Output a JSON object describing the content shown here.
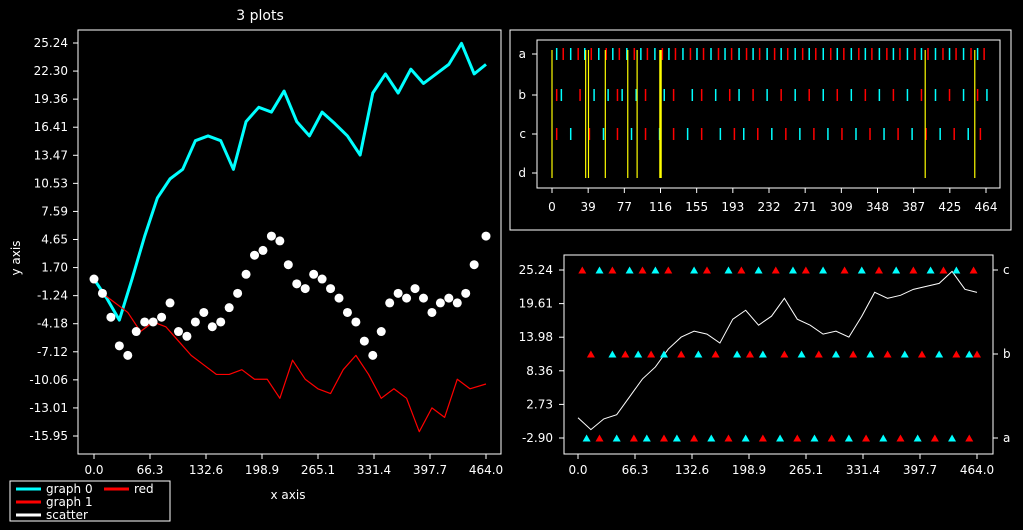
{
  "chart_data": [
    {
      "type": "line",
      "title": "3 plots",
      "xlabel": "x axis",
      "ylabel": "y axis",
      "xlim": [
        0,
        464
      ],
      "ylim": [
        -15.95,
        25.24
      ],
      "xticks": [
        "0.0",
        "66.3",
        "132.6",
        "198.9",
        "265.1",
        "331.4",
        "397.7",
        "464.0"
      ],
      "yticks": [
        "25.24",
        "22.30",
        "19.36",
        "16.41",
        "13.47",
        "10.53",
        "7.59",
        "4.65",
        "1.70",
        "-1.24",
        "-4.18",
        "-7.12",
        "-10.06",
        "-13.01",
        "-15.95"
      ],
      "legend": [
        {
          "name": "graph 0",
          "color": "#00ffff"
        },
        {
          "name": "graph 1",
          "color": "#ff0000"
        },
        {
          "name": "scatter",
          "color": "#ffffff"
        },
        {
          "name": "red",
          "color": "#ff0000"
        }
      ],
      "series": [
        {
          "name": "graph 0",
          "color": "#00ffff",
          "kind": "line",
          "x": [
            0,
            15,
            30,
            45,
            60,
            75,
            90,
            105,
            120,
            135,
            150,
            165,
            180,
            195,
            210,
            225,
            240,
            255,
            270,
            285,
            300,
            315,
            330,
            345,
            360,
            375,
            390,
            405,
            420,
            435,
            450,
            464
          ],
          "values": [
            0.5,
            -1.5,
            -3.8,
            0.5,
            5,
            9,
            11,
            12,
            15,
            15.5,
            15,
            12,
            17,
            18.5,
            18,
            20.2,
            17,
            15.5,
            18,
            16.8,
            15.5,
            13.5,
            20,
            22,
            20,
            22.5,
            21,
            22,
            23,
            25.2,
            22,
            23
          ]
        },
        {
          "name": "graph 1",
          "color": "#ff0000",
          "kind": "line",
          "x": [
            10,
            25,
            40,
            55,
            70,
            85,
            100,
            115,
            130,
            145,
            160,
            175,
            190,
            205,
            220,
            235,
            250,
            265,
            280,
            295,
            310,
            325,
            340,
            355,
            370,
            385,
            400,
            415,
            430,
            445,
            464
          ],
          "values": [
            -1,
            -2,
            -3,
            -5,
            -4,
            -4.5,
            -6,
            -7.5,
            -8.5,
            -9.5,
            -9.5,
            -9,
            -10,
            -10,
            -12,
            -8,
            -10,
            -11,
            -11.5,
            -9,
            -7.5,
            -9.5,
            -12,
            -11,
            -12,
            -15.5,
            -13,
            -14,
            -10,
            -11,
            -10.5
          ]
        },
        {
          "name": "scatter",
          "color": "#ffffff",
          "kind": "scatter",
          "x": [
            0,
            10,
            20,
            30,
            40,
            50,
            60,
            70,
            80,
            90,
            100,
            110,
            120,
            130,
            140,
            150,
            160,
            170,
            180,
            190,
            200,
            210,
            220,
            230,
            240,
            250,
            260,
            270,
            280,
            290,
            300,
            310,
            320,
            330,
            340,
            350,
            360,
            370,
            380,
            390,
            400,
            410,
            420,
            430,
            440,
            450,
            464
          ],
          "values": [
            0.5,
            -1,
            -3.5,
            -6.5,
            -7.5,
            -5,
            -4,
            -4,
            -3.5,
            -2,
            -5,
            -5.5,
            -4,
            -3,
            -4.5,
            -4,
            -2.5,
            -1,
            1,
            3,
            3.5,
            5,
            4.5,
            2,
            0,
            -0.5,
            1,
            0.5,
            -0.5,
            -1.5,
            -3,
            -4,
            -6,
            -7.5,
            -5,
            -2,
            -1,
            -1.5,
            -0.5,
            -1.5,
            -3,
            -2,
            -1.5,
            -2,
            -1,
            2,
            5
          ]
        }
      ]
    },
    {
      "type": "scatter",
      "xlim": [
        0,
        464
      ],
      "xticks": [
        "0",
        "39",
        "77",
        "116",
        "155",
        "193",
        "232",
        "271",
        "309",
        "348",
        "387",
        "425",
        "464"
      ],
      "categories": [
        "a",
        "b",
        "c",
        "d"
      ],
      "series": [
        {
          "name": "a",
          "color": "#00ffff",
          "marker": "tick",
          "x": [
            5,
            20,
            35,
            50,
            65,
            80,
            95,
            110,
            125,
            140,
            155,
            170,
            185,
            200,
            215,
            230,
            245,
            260,
            275,
            290,
            305,
            320,
            335,
            350,
            365,
            380,
            395,
            410,
            425,
            440,
            455
          ]
        },
        {
          "name": "a",
          "color": "#ff0000",
          "marker": "tick",
          "x": [
            12,
            28,
            42,
            58,
            72,
            88,
            102,
            118,
            132,
            148,
            162,
            178,
            192,
            208,
            222,
            238,
            252,
            268,
            282,
            298,
            312,
            328,
            342,
            358,
            372,
            388,
            402,
            418,
            432,
            448,
            462
          ]
        },
        {
          "name": "b",
          "color": "#00ffff",
          "marker": "tick",
          "x": [
            10,
            45,
            60,
            75,
            90,
            120,
            150,
            175,
            200,
            230,
            260,
            290,
            320,
            350,
            380,
            410,
            440,
            465
          ]
        },
        {
          "name": "b",
          "color": "#ff0000",
          "marker": "tick",
          "x": [
            5,
            30,
            70,
            100,
            130,
            160,
            190,
            215,
            245,
            275,
            305,
            335,
            365,
            395,
            425,
            455
          ]
        },
        {
          "name": "c",
          "color": "#00ffff",
          "marker": "tick",
          "x": [
            20,
            55,
            85,
            115,
            145,
            180,
            205,
            235,
            265,
            295,
            325,
            355,
            385,
            415,
            445
          ]
        },
        {
          "name": "c",
          "color": "#ff0000",
          "marker": "tick",
          "x": [
            5,
            40,
            70,
            100,
            130,
            160,
            195,
            220,
            250,
            280,
            310,
            340,
            370,
            400,
            430,
            458
          ]
        },
        {
          "name": "d",
          "color": "#ffff00",
          "marker": "vline",
          "x": [
            0,
            36,
            39,
            57,
            81,
            91,
            116,
            399,
            452
          ]
        }
      ]
    },
    {
      "type": "line",
      "xlim": [
        0,
        464
      ],
      "ylim": [
        -2.9,
        25.24
      ],
      "xticks": [
        "0.0",
        "66.3",
        "132.6",
        "198.9",
        "265.1",
        "331.4",
        "397.7",
        "464.0"
      ],
      "yticks": [
        "25.24",
        "19.61",
        "13.98",
        "8.36",
        "2.73",
        "-2.90"
      ],
      "right_ticks": [
        "c",
        "b",
        "a"
      ],
      "series": [
        {
          "name": "",
          "color": "#ffffff",
          "kind": "line",
          "x": [
            0,
            15,
            30,
            45,
            60,
            75,
            90,
            105,
            120,
            135,
            150,
            165,
            180,
            195,
            210,
            225,
            240,
            255,
            270,
            285,
            300,
            315,
            330,
            345,
            360,
            375,
            390,
            405,
            420,
            435,
            450,
            464
          ],
          "values": [
            0.5,
            -1.5,
            0.3,
            1,
            4,
            7,
            9,
            12,
            14,
            15,
            14.5,
            13,
            17,
            18.5,
            16,
            17.5,
            20.5,
            17,
            16,
            14.5,
            15,
            14,
            17.5,
            21.5,
            20.5,
            21,
            22,
            22.5,
            23,
            25,
            22,
            21.5
          ]
        },
        {
          "name": "",
          "color": "#00ffff",
          "marker": "triangle",
          "level": "c",
          "x": [
            25,
            60,
            90,
            135,
            175,
            210,
            250,
            285,
            330,
            370,
            410,
            440
          ]
        },
        {
          "name": "",
          "color": "#ff0000",
          "marker": "triangle",
          "level": "c",
          "x": [
            5,
            40,
            75,
            105,
            150,
            190,
            230,
            265,
            310,
            350,
            390,
            425,
            460
          ]
        },
        {
          "name": "",
          "color": "#00ffff",
          "marker": "triangle",
          "level": "b",
          "x": [
            40,
            70,
            100,
            140,
            185,
            215,
            260,
            300,
            340,
            380,
            420,
            455
          ]
        },
        {
          "name": "",
          "color": "#ff0000",
          "marker": "triangle",
          "level": "b",
          "x": [
            15,
            55,
            85,
            120,
            160,
            200,
            240,
            280,
            320,
            360,
            400,
            440,
            464
          ]
        },
        {
          "name": "",
          "color": "#00ffff",
          "marker": "triangle",
          "level": "a",
          "x": [
            10,
            45,
            80,
            115,
            155,
            195,
            235,
            275,
            315,
            355,
            395,
            435
          ]
        },
        {
          "name": "",
          "color": "#ff0000",
          "marker": "triangle",
          "level": "a",
          "x": [
            25,
            65,
            100,
            135,
            175,
            215,
            255,
            295,
            335,
            375,
            415,
            455
          ]
        }
      ]
    }
  ]
}
